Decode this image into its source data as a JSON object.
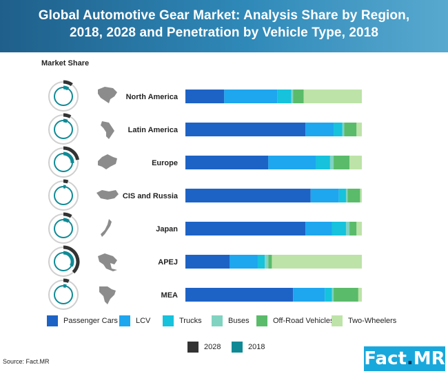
{
  "title_line1": "Global Automotive Gear Market: Analysis Share by Region,",
  "title_line2": "2018, 2028 and Penetration by Vehicle Type, 2018",
  "market_share_label": "Market Share",
  "source": "Source: Fact.MR",
  "logo": {
    "text": "Fact",
    "dot": ".",
    "suffix": "MR"
  },
  "colors": {
    "Passenger Cars": "#1d63c6",
    "LCV": "#1ea6ef",
    "Trucks": "#16c2dc",
    "Buses": "#80d3c0",
    "Off-Road Vehicles": "#5abb6a",
    "Two-Wheelers": "#bde3a8",
    "2028": "#333333",
    "2018": "#0f8a95"
  },
  "legend_years": [
    "2028",
    "2018"
  ],
  "chart_data": {
    "type": "bar",
    "stacked": true,
    "orientation": "horizontal",
    "categories": [
      "North America",
      "Latin America",
      "Europe",
      "CIS and Russia",
      "Japan",
      "APEJ",
      "MEA"
    ],
    "series": [
      {
        "name": "Passenger Cars",
        "values": [
          22,
          68,
          47,
          71,
          68,
          25,
          61
        ]
      },
      {
        "name": "LCV",
        "values": [
          30,
          16,
          27,
          16,
          15,
          16,
          18
        ]
      },
      {
        "name": "Trucks",
        "values": [
          8,
          5,
          8,
          4,
          8,
          4,
          4
        ]
      },
      {
        "name": "Buses",
        "values": [
          1,
          1,
          2,
          1,
          2,
          2,
          1
        ]
      },
      {
        "name": "Off-Road Vehicles",
        "values": [
          6,
          7,
          9,
          7,
          4,
          2,
          14
        ]
      },
      {
        "name": "Two-Wheelers",
        "values": [
          33,
          3,
          7,
          1,
          3,
          51,
          2
        ]
      }
    ],
    "xlim": [
      0,
      100
    ]
  }
}
